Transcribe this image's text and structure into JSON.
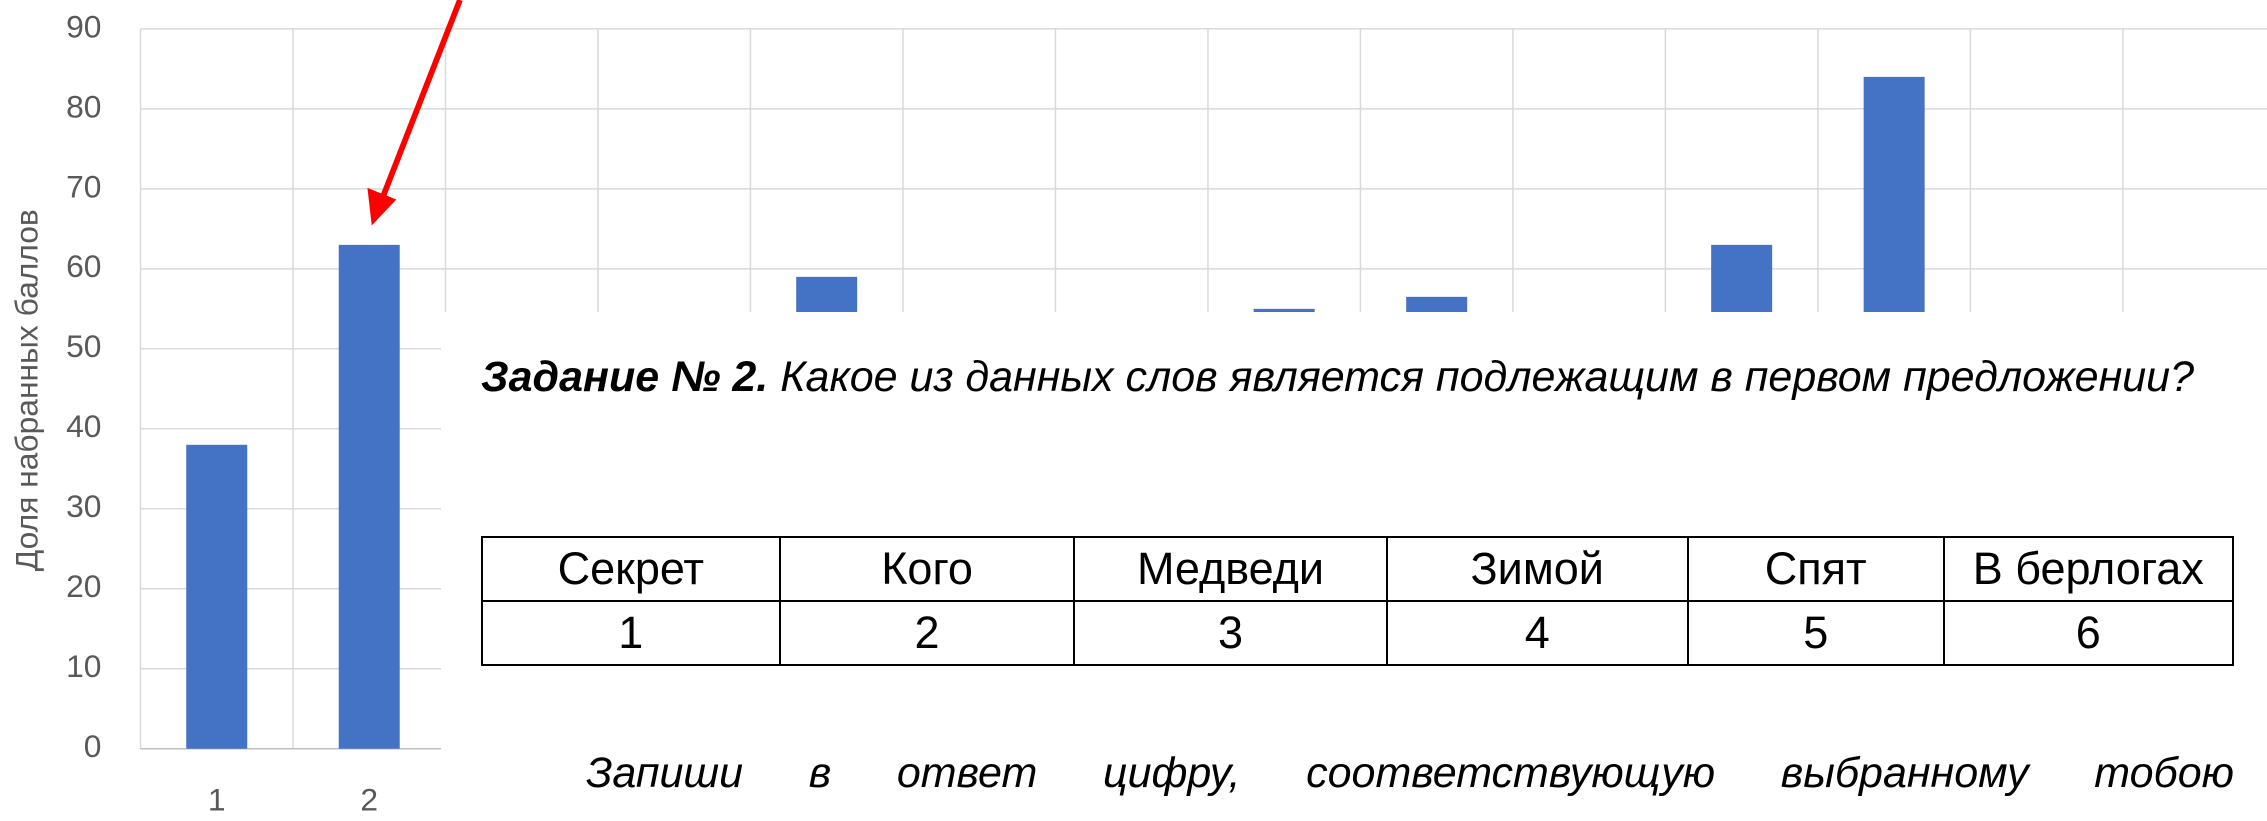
{
  "chart_data": {
    "type": "bar",
    "y_label": "Доля набранных баллов",
    "categories": [
      "1",
      "2",
      null,
      null,
      null,
      null,
      null,
      null,
      null,
      null,
      null,
      null,
      null,
      null
    ],
    "values": [
      38,
      63,
      null,
      null,
      59,
      null,
      null,
      55,
      56.5,
      null,
      63,
      84,
      null,
      null
    ],
    "color": "#4472c4",
    "ylim": [
      0,
      90
    ],
    "yticks": [
      0,
      10,
      20,
      30,
      40,
      50,
      60,
      70,
      80,
      90
    ],
    "grid": true
  },
  "task": {
    "heading": "Задание № 2.",
    "question": "Какое из данных слов является подлежащим в первом предложении?"
  },
  "table": {
    "rows": [
      [
        "Секрет",
        "Кого",
        "Медведи",
        "Зимой",
        "Спят",
        "В берлогах"
      ],
      [
        1,
        2,
        3,
        4,
        5,
        6
      ]
    ]
  },
  "instruction": "Запиши в ответ цифру, соответствующую выбранному тобою"
}
